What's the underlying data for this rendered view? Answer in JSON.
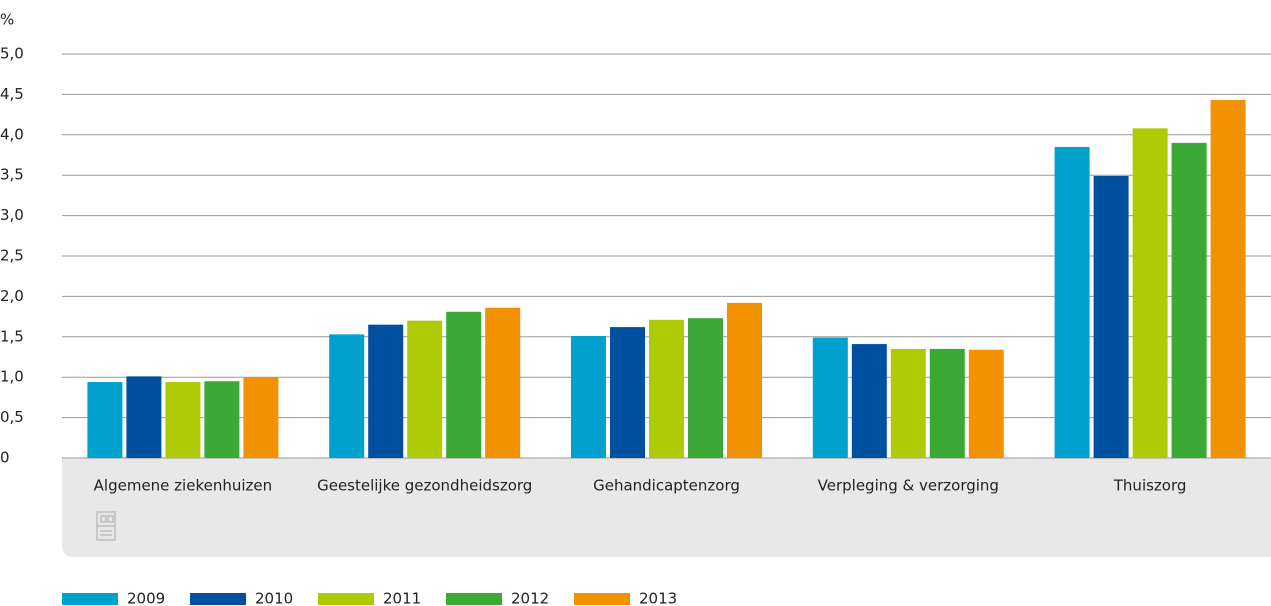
{
  "chart_data": {
    "type": "bar",
    "y_label": "%",
    "categories": [
      "Algemene ziekenhuizen",
      "Geestelijke gezondheidszorg",
      "Gehandicaptenzorg",
      "Verpleging & verzorging",
      "Thuiszorg"
    ],
    "series": [
      {
        "name": "2009",
        "color": "#00a1cd",
        "values": [
          0.94,
          1.53,
          1.51,
          1.49,
          3.85
        ]
      },
      {
        "name": "2010",
        "color": "#0050a0",
        "values": [
          1.01,
          1.65,
          1.62,
          1.41,
          3.49
        ]
      },
      {
        "name": "2011",
        "color": "#afcb05",
        "values": [
          0.94,
          1.7,
          1.71,
          1.35,
          4.08
        ]
      },
      {
        "name": "2012",
        "color": "#3aa935",
        "values": [
          0.95,
          1.81,
          1.73,
          1.35,
          3.9
        ]
      },
      {
        "name": "2013",
        "color": "#f39200",
        "values": [
          1.0,
          1.86,
          1.92,
          1.34,
          4.43
        ]
      }
    ],
    "ylim": [
      0,
      5
    ],
    "yticks": [
      0,
      {
        "value": 0.5,
        "label": "0,5"
      },
      {
        "value": 1,
        "label": "1,0"
      },
      {
        "value": 1.5,
        "label": "1,5"
      },
      {
        "value": 2,
        "label": "2,0"
      },
      {
        "value": 2.5,
        "label": "2,5"
      },
      {
        "value": 3,
        "label": "3,0"
      },
      {
        "value": 3.5,
        "label": "3,5"
      },
      {
        "value": 4,
        "label": "4,0"
      },
      {
        "value": 4.5,
        "label": "4,5"
      },
      {
        "value": 5,
        "label": "5,0"
      }
    ],
    "grid": true,
    "legend": "bottom"
  }
}
